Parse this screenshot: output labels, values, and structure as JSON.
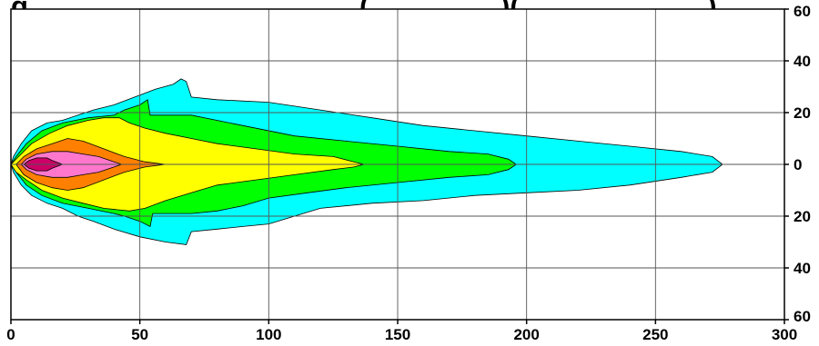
{
  "chart_data": {
    "type": "area",
    "title": "g (cut off) (cut off),",
    "title_partial": "g",
    "title_partial_2": "(",
    "title_partial_3": ")(",
    "title_partial_4": ", )",
    "xlim": [
      0,
      300
    ],
    "ylim": [
      -60,
      60
    ],
    "grid": true,
    "x_ticks": [
      0,
      50,
      100,
      150,
      200,
      250,
      300
    ],
    "x_tick_labels": [
      "0",
      "50",
      "100",
      "150",
      "200",
      "250",
      "300"
    ],
    "y_ticks": [
      60,
      40,
      20,
      0,
      -20,
      -40,
      -60
    ],
    "y_tick_labels": [
      "60",
      "40",
      "20",
      "0",
      "20",
      "40",
      "60"
    ],
    "series": [
      {
        "color": "#00ffff",
        "outline": [
          [
            0,
            0
          ],
          [
            1,
            3
          ],
          [
            4,
            8
          ],
          [
            8,
            13
          ],
          [
            14,
            16
          ],
          [
            20,
            17
          ],
          [
            26,
            19
          ],
          [
            32,
            21
          ],
          [
            40,
            23
          ],
          [
            48,
            26
          ],
          [
            56,
            29
          ],
          [
            63,
            31
          ],
          [
            66,
            33
          ],
          [
            68,
            32
          ],
          [
            70,
            26
          ],
          [
            80,
            25
          ],
          [
            100,
            24
          ],
          [
            120,
            21
          ],
          [
            140,
            18
          ],
          [
            160,
            15
          ],
          [
            180,
            13
          ],
          [
            200,
            11
          ],
          [
            220,
            9
          ],
          [
            240,
            7
          ],
          [
            260,
            5
          ],
          [
            272,
            3
          ],
          [
            276,
            0
          ],
          [
            272,
            -3
          ],
          [
            260,
            -5
          ],
          [
            240,
            -8
          ],
          [
            220,
            -10
          ],
          [
            200,
            -11
          ],
          [
            180,
            -12
          ],
          [
            160,
            -14
          ],
          [
            140,
            -15
          ],
          [
            120,
            -17
          ],
          [
            110,
            -20
          ],
          [
            100,
            -23
          ],
          [
            90,
            -24
          ],
          [
            80,
            -25
          ],
          [
            70,
            -26
          ],
          [
            68,
            -31
          ],
          [
            60,
            -30
          ],
          [
            50,
            -28
          ],
          [
            40,
            -25
          ],
          [
            32,
            -22
          ],
          [
            26,
            -20
          ],
          [
            20,
            -17
          ],
          [
            14,
            -15
          ],
          [
            8,
            -12
          ],
          [
            4,
            -8
          ],
          [
            1,
            -3
          ]
        ]
      },
      {
        "color": "#00ff00",
        "outline": [
          [
            0,
            0
          ],
          [
            2,
            3
          ],
          [
            6,
            8
          ],
          [
            12,
            13
          ],
          [
            20,
            16
          ],
          [
            30,
            18
          ],
          [
            40,
            19
          ],
          [
            44,
            21
          ],
          [
            50,
            23
          ],
          [
            53,
            25
          ],
          [
            54,
            19
          ],
          [
            70,
            19
          ],
          [
            90,
            15
          ],
          [
            110,
            11
          ],
          [
            130,
            9
          ],
          [
            150,
            7
          ],
          [
            170,
            5
          ],
          [
            185,
            4
          ],
          [
            193,
            2
          ],
          [
            196,
            0
          ],
          [
            193,
            -2
          ],
          [
            185,
            -4
          ],
          [
            170,
            -5
          ],
          [
            150,
            -7
          ],
          [
            130,
            -9
          ],
          [
            115,
            -11
          ],
          [
            100,
            -13
          ],
          [
            90,
            -16
          ],
          [
            80,
            -18
          ],
          [
            70,
            -19
          ],
          [
            55,
            -19
          ],
          [
            54,
            -24
          ],
          [
            50,
            -22
          ],
          [
            44,
            -20
          ],
          [
            40,
            -19
          ],
          [
            30,
            -17
          ],
          [
            20,
            -15
          ],
          [
            12,
            -12
          ],
          [
            6,
            -8
          ],
          [
            2,
            -3
          ]
        ]
      },
      {
        "color": "#ffff00",
        "outline": [
          [
            0,
            0
          ],
          [
            3,
            3
          ],
          [
            8,
            8
          ],
          [
            15,
            12
          ],
          [
            22,
            15
          ],
          [
            30,
            17
          ],
          [
            36,
            18
          ],
          [
            42,
            18
          ],
          [
            46,
            16
          ],
          [
            52,
            14
          ],
          [
            60,
            12
          ],
          [
            70,
            10
          ],
          [
            80,
            8
          ],
          [
            95,
            6
          ],
          [
            110,
            4
          ],
          [
            125,
            3
          ],
          [
            133,
            1
          ],
          [
            137,
            0
          ],
          [
            133,
            -1
          ],
          [
            125,
            -2
          ],
          [
            110,
            -4
          ],
          [
            95,
            -6
          ],
          [
            80,
            -8
          ],
          [
            70,
            -11
          ],
          [
            60,
            -14
          ],
          [
            52,
            -17
          ],
          [
            46,
            -18
          ],
          [
            36,
            -17
          ],
          [
            28,
            -15
          ],
          [
            20,
            -13
          ],
          [
            12,
            -10
          ],
          [
            6,
            -6
          ],
          [
            2,
            -3
          ]
        ]
      },
      {
        "color": "#ff8000",
        "outline": [
          [
            2,
            0
          ],
          [
            5,
            3
          ],
          [
            10,
            6
          ],
          [
            16,
            8
          ],
          [
            22,
            10
          ],
          [
            28,
            9
          ],
          [
            36,
            6
          ],
          [
            44,
            3
          ],
          [
            52,
            1
          ],
          [
            60,
            0
          ],
          [
            52,
            -1
          ],
          [
            44,
            -3
          ],
          [
            36,
            -6
          ],
          [
            28,
            -9
          ],
          [
            22,
            -10
          ],
          [
            16,
            -9
          ],
          [
            10,
            -7
          ],
          [
            5,
            -4
          ]
        ]
      },
      {
        "color": "#ff77cc",
        "outline": [
          [
            4,
            0
          ],
          [
            6,
            2
          ],
          [
            10,
            4
          ],
          [
            16,
            5
          ],
          [
            22,
            5
          ],
          [
            28,
            4
          ],
          [
            34,
            3
          ],
          [
            40,
            1
          ],
          [
            43,
            0
          ],
          [
            40,
            -1
          ],
          [
            34,
            -3
          ],
          [
            28,
            -4
          ],
          [
            22,
            -5
          ],
          [
            16,
            -5
          ],
          [
            10,
            -4
          ],
          [
            6,
            -2
          ]
        ]
      },
      {
        "color": "#cc0066",
        "outline": [
          [
            5,
            0
          ],
          [
            7,
            1.5
          ],
          [
            10,
            2.5
          ],
          [
            14,
            2.5
          ],
          [
            16,
            1.5
          ],
          [
            20,
            0
          ],
          [
            16,
            -1.5
          ],
          [
            14,
            -2.5
          ],
          [
            10,
            -2.5
          ],
          [
            7,
            -1.5
          ]
        ]
      }
    ]
  }
}
